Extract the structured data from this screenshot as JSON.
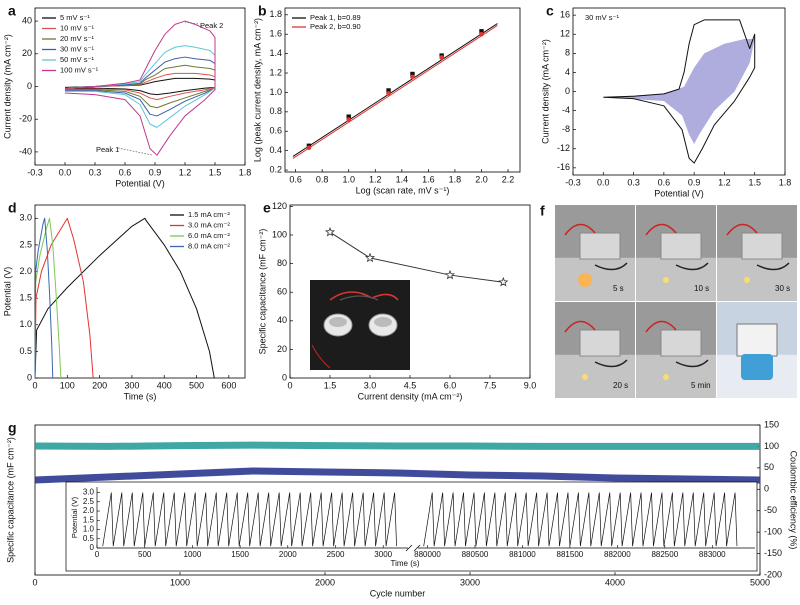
{
  "chart_data": [
    {
      "type": "line",
      "label": "a",
      "xlabel": "Potential (V)",
      "ylabel": "Current density (mA cm⁻²)",
      "xlim": [
        -0.3,
        1.8
      ],
      "xticks": [
        -0.3,
        {
          "value": 0,
          "label": "0.0"
        },
        0.3,
        0.6,
        0.9,
        1.2,
        1.5,
        1.8
      ],
      "ylim": [
        -48,
        48
      ],
      "yticks": [
        -40,
        -20,
        0,
        20,
        40
      ],
      "legend_loc": "upper left",
      "annotations": [
        "Peak 2",
        "Peak 1"
      ],
      "x": [
        0,
        0.3,
        0.6,
        0.75,
        0.8,
        0.9,
        1.0,
        1.1,
        1.2,
        1.3,
        1.45,
        1.5,
        1.5,
        1.4,
        1.2,
        1.05,
        0.92,
        0.85,
        0.75,
        0.6,
        0.3,
        0
      ],
      "series": [
        {
          "name": "5   mV s⁻¹",
          "color": "#111111",
          "values": [
            -0.5,
            0,
            0.5,
            0.8,
            1.5,
            3,
            4,
            5,
            5,
            5,
            4.5,
            4,
            -0.5,
            -1,
            -2.5,
            -4,
            -5,
            -4.5,
            -2.5,
            -1.5,
            -1,
            -1
          ]
        },
        {
          "name": "10   mV s⁻¹",
          "color": "#d9534f",
          "values": [
            -1,
            0,
            0.5,
            1,
            2.5,
            5,
            7,
            8,
            8,
            8,
            7,
            6,
            -0.5,
            -2,
            -4,
            -6,
            -8,
            -7,
            -4,
            -2,
            -1.5,
            -1.5
          ]
        },
        {
          "name": "20   mV s⁻¹",
          "color": "#6c7a2f",
          "values": [
            -1,
            0,
            1,
            1.5,
            4,
            7,
            11,
            12,
            13,
            12,
            11,
            10,
            -1,
            -3,
            -7,
            -10,
            -13,
            -12,
            -6,
            -3,
            -2,
            -2
          ]
        },
        {
          "name": "30   mV s⁻¹",
          "color": "#3f5ea8",
          "values": [
            -1,
            0,
            1,
            2,
            5,
            10,
            15,
            17,
            18,
            17,
            16,
            14,
            -1,
            -4,
            -9,
            -14,
            -18,
            -17,
            -8,
            -4,
            -2.5,
            -2.5
          ]
        },
        {
          "name": "50   mV s⁻¹",
          "color": "#5bc8d6",
          "values": [
            -1,
            0,
            1.5,
            3,
            7,
            14,
            21,
            24,
            25,
            24,
            22,
            19,
            -1,
            -5,
            -12,
            -19,
            -25,
            -23,
            -11,
            -5,
            -3,
            -3
          ]
        },
        {
          "name": "100 mV s⁻¹",
          "color": "#c2388f",
          "values": [
            -1,
            0,
            2,
            4,
            10,
            22,
            32,
            38,
            40,
            38,
            34,
            30,
            -2,
            -8,
            -18,
            -30,
            -42,
            -38,
            -18,
            -8,
            -5,
            -4
          ]
        }
      ]
    },
    {
      "type": "scatter",
      "label": "b",
      "xlabel": "Log (scan rate, mV s⁻¹)",
      "ylabel": "Log (peak current density, mA cm⁻²)",
      "xlim": [
        0.52,
        2.29
      ],
      "xticks": [
        0.6,
        0.8,
        {
          "value": 1,
          "label": "1.0"
        },
        1.2,
        1.4,
        1.6,
        1.8,
        {
          "value": 2,
          "label": "2.0"
        },
        2.2
      ],
      "ylim": [
        0.18,
        1.87
      ],
      "yticks": [
        0.2,
        0.4,
        0.6,
        0.8,
        {
          "value": 1,
          "label": "1.0"
        },
        1.2,
        1.4,
        1.6,
        1.8
      ],
      "legend_loc": "upper left",
      "series": [
        {
          "name": "Peak 1, b=0.89",
          "color": "#111111",
          "marker": "square",
          "x": [
            0.7,
            1.0,
            1.3,
            1.48,
            1.7,
            2.0
          ],
          "values": [
            0.45,
            0.75,
            1.02,
            1.19,
            1.38,
            1.63
          ],
          "fit": {
            "x": [
              0.58,
              2.12
            ],
            "values": [
              0.34,
              1.71
            ]
          }
        },
        {
          "name": "Peak 2, b=0.90",
          "color": "#e3342f",
          "marker": "circle",
          "x": [
            0.7,
            1.0,
            1.3,
            1.48,
            1.7,
            2.0
          ],
          "values": [
            0.43,
            0.72,
            0.99,
            1.16,
            1.36,
            1.6
          ],
          "fit": {
            "x": [
              0.58,
              2.12
            ],
            "values": [
              0.32,
              1.69
            ]
          }
        }
      ]
    },
    {
      "type": "line",
      "label": "c",
      "xlabel": "Potential (V)",
      "ylabel": "Current density (mA cm⁻²)",
      "annotations": [
        "30 mV s⁻¹"
      ],
      "xlim": [
        -0.3,
        1.8
      ],
      "xticks": [
        -0.3,
        {
          "value": 0,
          "label": "0.0"
        },
        0.3,
        0.6,
        0.9,
        1.2,
        1.5,
        1.8
      ],
      "ylim": [
        -17.5,
        17.5
      ],
      "yticks": [
        -16,
        -12,
        -8,
        -4,
        0,
        4,
        8,
        12,
        16
      ],
      "series": [
        {
          "color": "#9b97d6",
          "fill": true,
          "x": [
            0,
            0.6,
            0.8,
            0.9,
            1.0,
            1.2,
            1.4,
            1.5,
            1.45,
            1.3,
            1.1,
            0.95,
            0.9,
            0.85,
            0.78,
            0.6,
            0
          ],
          "values": [
            -1.2,
            -0.5,
            1,
            5,
            8,
            10,
            11,
            11,
            6,
            0,
            -4,
            -9,
            -11,
            -9,
            -5,
            -2,
            -1.2
          ]
        },
        {
          "color": "#111111",
          "x": [
            0,
            0.3,
            0.6,
            0.75,
            0.8,
            0.85,
            0.9,
            1.0,
            1.2,
            1.35,
            1.45,
            1.5,
            1.5,
            1.45,
            1.3,
            1.1,
            0.98,
            0.9,
            0.85,
            0.78,
            0.6,
            0.3,
            0
          ],
          "values": [
            -1.2,
            -1,
            -0.5,
            0.5,
            4,
            10,
            14,
            15,
            15,
            15,
            9,
            12,
            5,
            3,
            -2,
            -7,
            -12,
            -15,
            -14,
            -8,
            -3,
            -1.5,
            -1.2
          ]
        }
      ]
    },
    {
      "type": "line",
      "label": "d",
      "xlabel": "Time (s)",
      "ylabel": "Potential (V)",
      "xlim": [
        0,
        650
      ],
      "xticks": [
        0,
        100,
        200,
        300,
        400,
        500,
        600
      ],
      "ylim": [
        0,
        3.25
      ],
      "yticks": [
        0,
        0.5,
        {
          "value": 1,
          "label": "1.0"
        },
        1.5,
        {
          "value": 2,
          "label": "2.0"
        },
        2.5,
        {
          "value": 3,
          "label": "3.0"
        }
      ],
      "legend_loc": "upper right",
      "series": [
        {
          "name": "1.5 mA cm⁻²",
          "color": "#111111",
          "x": [
            0,
            5,
            40,
            100,
            200,
            300,
            340,
            345,
            400,
            450,
            500,
            540,
            555
          ],
          "values": [
            0,
            0.9,
            1.3,
            1.7,
            2.3,
            2.85,
            3.0,
            2.95,
            2.5,
            2.0,
            1.3,
            0.5,
            0
          ]
        },
        {
          "name": "3.0 mA cm⁻²",
          "color": "#e3342f",
          "x": [
            0,
            3,
            20,
            50,
            95,
            100,
            120,
            150,
            170,
            180
          ],
          "values": [
            0,
            1.5,
            2.0,
            2.5,
            2.95,
            3.0,
            2.6,
            1.8,
            0.8,
            0
          ]
        },
        {
          "name": "6.0 mA cm⁻²",
          "color": "#7ec850",
          "x": [
            0,
            2,
            15,
            35,
            45,
            55,
            65,
            75,
            80
          ],
          "values": [
            0,
            1.8,
            2.3,
            2.8,
            3.0,
            2.5,
            1.6,
            0.6,
            0
          ]
        },
        {
          "name": "8.0 mA cm⁻²",
          "color": "#3a67b0",
          "x": [
            0,
            2,
            10,
            25,
            30,
            38,
            45,
            52,
            55
          ],
          "values": [
            0,
            2.0,
            2.4,
            2.9,
            3.0,
            2.4,
            1.6,
            0.6,
            0
          ]
        }
      ]
    },
    {
      "type": "line",
      "label": "e",
      "xlabel": "Current density (mA cm⁻²)",
      "ylabel": "Specific capacitance (mF cm⁻²)",
      "xlim": [
        0,
        9
      ],
      "xticks": [
        0,
        1.5,
        {
          "value": 3,
          "label": "3.0"
        },
        4.5,
        {
          "value": 6,
          "label": "6.0"
        },
        7.5,
        {
          "value": 9,
          "label": "9.0"
        }
      ],
      "ylim": [
        0,
        121
      ],
      "yticks": [
        0,
        20,
        40,
        60,
        80,
        100,
        120
      ],
      "series": [
        {
          "color": "#333333",
          "marker": "star",
          "x": [
            1.5,
            3,
            6,
            8
          ],
          "values": [
            102,
            84,
            72,
            67
          ]
        }
      ]
    },
    {
      "type": "dual_axis_line",
      "label": "g",
      "xlabel": "Cycle number",
      "ylabel": "Specific capacitance (mF cm⁻²)",
      "y2label": "Coulombic efficiency (%)",
      "xlim": [
        0,
        5000
      ],
      "xticks": [
        0,
        1000,
        2000,
        3000,
        4000,
        5000
      ],
      "ylim": [
        0,
        150
      ],
      "y2lim": [
        -200,
        150
      ],
      "y2ticks": [
        -200,
        -150,
        -100,
        -50,
        0,
        50,
        100,
        150
      ],
      "x": [
        0,
        500,
        1000,
        1500,
        2000,
        2500,
        3000,
        3500,
        4000,
        4500,
        5000
      ],
      "series": [
        {
          "color": "#2b3990",
          "values": [
            95,
            98,
            101,
            104,
            103,
            102,
            100,
            99,
            97,
            96,
            95
          ]
        },
        {
          "color": "#2a9d9a",
          "axis": "y2",
          "values": [
            101,
            100,
            102,
            103,
            102,
            101,
            101,
            100,
            100,
            100,
            100
          ]
        }
      ]
    },
    {
      "type": "broken_line",
      "xlabel": "Time (s)",
      "ylabel": "Potential (V)",
      "ylim": [
        0,
        3.3
      ],
      "yticks": [
        0,
        0.5,
        {
          "value": 1,
          "label": "1.0"
        },
        1.5,
        {
          "value": 2,
          "label": "2.0"
        },
        2.5,
        {
          "value": 3,
          "label": "3.0"
        }
      ],
      "color": "#111111",
      "segments": [
        {
          "xlim": [
            0,
            3260
          ],
          "xticks": [
            0,
            500,
            1000,
            1500,
            2000,
            2500,
            3000
          ],
          "x": [
            60,
            150,
            170,
            260,
            280,
            370,
            390,
            480,
            500,
            590,
            610,
            700,
            720,
            810,
            830,
            920,
            940,
            1030,
            1050,
            1140,
            1160,
            1250,
            1270,
            1360,
            1380,
            1470,
            1490,
            1580,
            1600,
            1690,
            1710,
            1800,
            1820,
            1910,
            1930,
            2020,
            2040,
            2130,
            2150,
            2240,
            2260,
            2350,
            2370,
            2460,
            2480,
            2570,
            2590,
            2680,
            2700,
            2790,
            2810,
            2900,
            2920,
            3010,
            3030,
            3120,
            3140
          ],
          "values": [
            0.1,
            3.0,
            0.1,
            3.0,
            0.1,
            3.0,
            0.1,
            3.0,
            0.1,
            3.0,
            0.1,
            3.0,
            0.1,
            3.0,
            0.1,
            3.0,
            0.1,
            3.0,
            0.1,
            3.0,
            0.1,
            3.0,
            0.1,
            3.0,
            0.1,
            3.0,
            0.1,
            3.0,
            0.1,
            3.0,
            0.1,
            3.0,
            0.1,
            3.0,
            0.1,
            3.0,
            0.1,
            3.0,
            0.1,
            3.0,
            0.1,
            3.0,
            0.1,
            3.0,
            0.1,
            3.0,
            0.1,
            3.0,
            0.1,
            3.0,
            0.1,
            3.0,
            0.1,
            3.0,
            0.1,
            3.0,
            0.1
          ]
        },
        {
          "xlim": [
            879900,
            883450
          ],
          "xticks": [
            880000,
            880500,
            881000,
            881500,
            882000,
            882500,
            883000
          ],
          "x": [
            879960,
            880050,
            880070,
            880160,
            880180,
            880270,
            880290,
            880380,
            880400,
            880490,
            880510,
            880600,
            880620,
            880710,
            880730,
            880820,
            880840,
            880930,
            880950,
            881040,
            881060,
            881150,
            881170,
            881260,
            881280,
            881370,
            881390,
            881480,
            881500,
            881590,
            881610,
            881700,
            881720,
            881810,
            881830,
            881920,
            881940,
            882030,
            882050,
            882140,
            882160,
            882250,
            882270,
            882360,
            882380,
            882470,
            882490,
            882580,
            882600,
            882690,
            882710,
            882800,
            882820,
            882910,
            882930,
            883020,
            883040,
            883130,
            883150,
            883240,
            883260
          ],
          "values": [
            0.1,
            3.0,
            0.1,
            3.0,
            0.1,
            3.0,
            0.1,
            3.0,
            0.1,
            3.0,
            0.1,
            3.0,
            0.1,
            3.0,
            0.1,
            3.0,
            0.1,
            3.0,
            0.1,
            3.0,
            0.1,
            3.0,
            0.1,
            3.0,
            0.1,
            3.0,
            0.1,
            3.0,
            0.1,
            3.0,
            0.1,
            3.0,
            0.1,
            3.0,
            0.1,
            3.0,
            0.1,
            3.0,
            0.1,
            3.0,
            0.1,
            3.0,
            0.1,
            3.0,
            0.1,
            3.0,
            0.1,
            3.0,
            0.1,
            3.0,
            0.1,
            3.0,
            0.1,
            3.0,
            0.1,
            3.0,
            0.1,
            3.0,
            0.1,
            3.0,
            0.1
          ]
        }
      ]
    }
  ],
  "figure_f": {
    "label": "f",
    "captions": [
      "5 s",
      "10 s",
      "30 s",
      "20 s",
      "5 min"
    ]
  }
}
